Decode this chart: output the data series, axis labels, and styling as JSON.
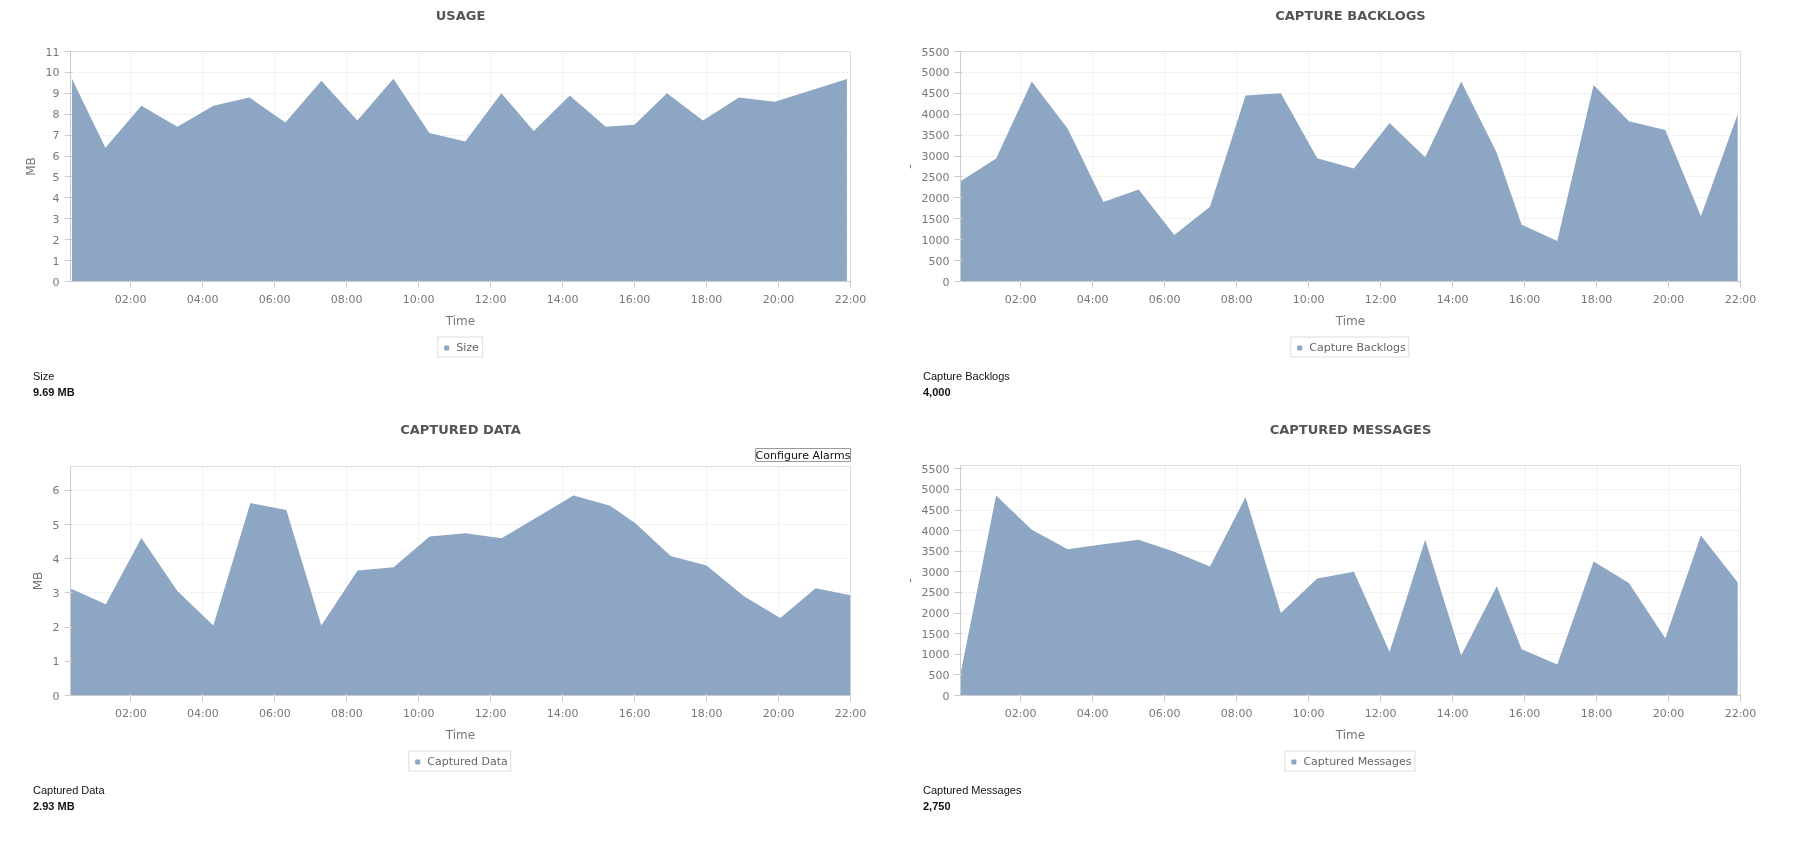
{
  "chart_data": [
    {
      "type": "area",
      "title": "USAGE",
      "xlabel": "Time",
      "ylabel": "MB",
      "x": [
        0.37,
        1.3,
        2.3,
        3.3,
        4.3,
        5.3,
        6.3,
        7.3,
        8.3,
        9.3,
        10.3,
        11.3,
        12.3,
        13.2,
        14.2,
        15.2,
        16.0,
        16.9,
        17.9,
        18.9,
        19.9,
        21.9
      ],
      "series": [
        {
          "name": "Size",
          "color": "#8da6c4",
          "values": [
            9.7,
            6.4,
            8.4,
            7.4,
            8.4,
            8.8,
            7.6,
            9.6,
            7.7,
            9.7,
            7.1,
            6.7,
            9.0,
            7.2,
            8.9,
            7.4,
            7.5,
            9.0,
            7.7,
            8.8,
            8.6,
            9.69
          ]
        }
      ],
      "xlim": [
        0.33,
        22
      ],
      "ylim": [
        0,
        11
      ],
      "xticks": [
        {
          "value": 2,
          "label": "02:00"
        },
        {
          "value": 4,
          "label": "04:00"
        },
        {
          "value": 6,
          "label": "06:00"
        },
        {
          "value": 8,
          "label": "08:00"
        },
        {
          "value": 10,
          "label": "10:00"
        },
        {
          "value": 12,
          "label": "12:00"
        },
        {
          "value": 14,
          "label": "14:00"
        },
        {
          "value": 16,
          "label": "16:00"
        },
        {
          "value": 18,
          "label": "18:00"
        },
        {
          "value": 20,
          "label": "20:00"
        },
        {
          "value": 22,
          "label": "22:00"
        }
      ],
      "yticks": [
        0,
        1,
        2,
        3,
        4,
        5,
        6,
        7,
        8,
        9,
        10,
        11
      ],
      "grid": true,
      "legend": "bottom",
      "annotations": [
        "Size",
        "9.69 MB"
      ]
    },
    {
      "type": "area",
      "title": "CAPTURE BACKLOGS",
      "xlabel": "Time",
      "ylabel": "-",
      "x": [
        0.33,
        1.32,
        2.31,
        3.31,
        4.3,
        5.28,
        6.27,
        7.26,
        8.25,
        9.23,
        10.24,
        11.26,
        12.25,
        13.24,
        14.24,
        15.23,
        15.92,
        16.91,
        17.92,
        18.9,
        19.91,
        20.9,
        21.92
      ],
      "series": [
        {
          "name": "Capture Backlogs",
          "color": "#8da6c4",
          "values": [
            2400,
            2940,
            4780,
            3650,
            1900,
            2200,
            1110,
            1790,
            4450,
            4500,
            2950,
            2700,
            3790,
            2970,
            4780,
            3070,
            1360,
            970,
            4700,
            3830,
            3620,
            1560,
            4000
          ]
        }
      ],
      "xlim": [
        0.33,
        22
      ],
      "ylim": [
        0,
        5500
      ],
      "xticks": [
        {
          "value": 2,
          "label": "02:00"
        },
        {
          "value": 4,
          "label": "04:00"
        },
        {
          "value": 6,
          "label": "06:00"
        },
        {
          "value": 8,
          "label": "08:00"
        },
        {
          "value": 10,
          "label": "10:00"
        },
        {
          "value": 12,
          "label": "12:00"
        },
        {
          "value": 14,
          "label": "14:00"
        },
        {
          "value": 16,
          "label": "16:00"
        },
        {
          "value": 18,
          "label": "18:00"
        },
        {
          "value": 20,
          "label": "20:00"
        },
        {
          "value": 22,
          "label": "22:00"
        }
      ],
      "yticks": [
        0,
        500,
        1000,
        1500,
        2000,
        2500,
        3000,
        3500,
        4000,
        4500,
        5000,
        5500
      ],
      "grid": true,
      "legend": "bottom",
      "annotations": [
        "Capture Backlogs",
        "4,000"
      ]
    },
    {
      "type": "area",
      "title": "CAPTURED DATA",
      "xlabel": "Time",
      "ylabel": "MB",
      "x": [
        0.32,
        1.3,
        2.29,
        3.29,
        4.29,
        5.32,
        6.32,
        7.29,
        8.3,
        9.3,
        10.3,
        11.3,
        12.3,
        14.3,
        15.32,
        16.02,
        17.0,
        18.0,
        19.03,
        20.05,
        21.03,
        22.0
      ],
      "series": [
        {
          "name": "Captured Data",
          "color": "#8da6c4",
          "values": [
            3.13,
            2.67,
            4.61,
            3.06,
            2.05,
            5.63,
            5.43,
            2.05,
            3.66,
            3.75,
            4.65,
            4.75,
            4.6,
            5.85,
            5.55,
            5.04,
            4.08,
            3.8,
            2.91,
            2.27,
            3.14,
            2.93
          ]
        }
      ],
      "xlim": [
        0.32,
        22
      ],
      "ylim": [
        0,
        6.7
      ],
      "xticks": [
        {
          "value": 2,
          "label": "02:00"
        },
        {
          "value": 4,
          "label": "04:00"
        },
        {
          "value": 6,
          "label": "06:00"
        },
        {
          "value": 8,
          "label": "08:00"
        },
        {
          "value": 10,
          "label": "10:00"
        },
        {
          "value": 12,
          "label": "12:00"
        },
        {
          "value": 14,
          "label": "14:00"
        },
        {
          "value": 16,
          "label": "16:00"
        },
        {
          "value": 18,
          "label": "18:00"
        },
        {
          "value": 20,
          "label": "20:00"
        },
        {
          "value": 22,
          "label": "22:00"
        }
      ],
      "yticks": [
        0,
        1,
        2,
        3,
        4,
        5,
        6
      ],
      "grid": true,
      "legend": "bottom",
      "annotations": [
        "Captured Data",
        "2.93 MB",
        "Configure Alarms"
      ]
    },
    {
      "type": "area",
      "title": "CAPTURED MESSAGES",
      "xlabel": "Time",
      "ylabel": "-",
      "x": [
        0.33,
        1.32,
        2.31,
        3.31,
        4.3,
        5.28,
        6.27,
        7.26,
        8.25,
        9.23,
        10.24,
        11.26,
        12.25,
        13.24,
        14.24,
        15.23,
        15.92,
        16.91,
        17.92,
        18.9,
        19.91,
        20.9,
        21.92
      ],
      "series": [
        {
          "name": "Captured Messages",
          "color": "#8da6c4",
          "values": [
            530,
            4850,
            4020,
            3550,
            3670,
            3780,
            3490,
            3130,
            4810,
            2000,
            2840,
            3000,
            1060,
            3780,
            970,
            2650,
            1120,
            750,
            3250,
            2730,
            1390,
            3880,
            2750
          ]
        }
      ],
      "xlim": [
        0.33,
        22
      ],
      "ylim": [
        0,
        5580
      ],
      "xticks": [
        {
          "value": 2,
          "label": "02:00"
        },
        {
          "value": 4,
          "label": "04:00"
        },
        {
          "value": 6,
          "label": "06:00"
        },
        {
          "value": 8,
          "label": "08:00"
        },
        {
          "value": 10,
          "label": "10:00"
        },
        {
          "value": 12,
          "label": "12:00"
        },
        {
          "value": 14,
          "label": "14:00"
        },
        {
          "value": 16,
          "label": "16:00"
        },
        {
          "value": 18,
          "label": "18:00"
        },
        {
          "value": 20,
          "label": "20:00"
        },
        {
          "value": 22,
          "label": "22:00"
        }
      ],
      "yticks": [
        0,
        500,
        1000,
        1500,
        2000,
        2500,
        3000,
        3500,
        4000,
        4500,
        5000,
        5500
      ],
      "grid": true,
      "legend": "bottom",
      "annotations": [
        "Captured Messages",
        "2,750"
      ]
    }
  ]
}
